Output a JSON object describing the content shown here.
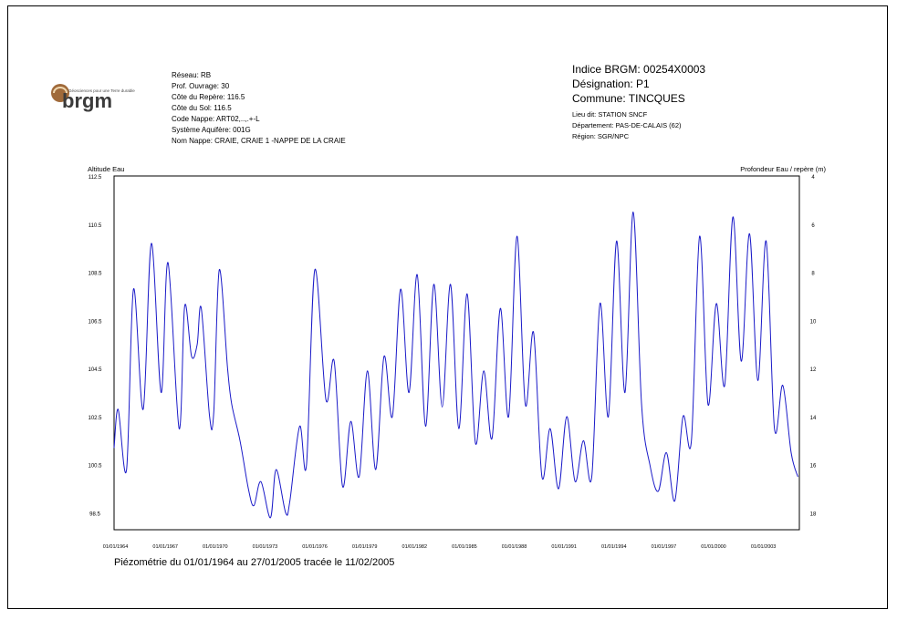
{
  "logo": {
    "wordmark": "brgm",
    "tagline": "Géosciences pour une Terre durable"
  },
  "station": {
    "reseau": "Réseau: RB",
    "prof_ouvrage": "Prof. Ouvrage: 30",
    "cote_repere": "Côte du Repère: 116.5",
    "cote_sol": "Côte du Sol: 116.5",
    "code_nappe": "Code Nappe: ART02,..,.+-L",
    "systeme_aquifere": "Système Aquifère: 001G",
    "nom_nappe": "Nom Nappe: CRAIE, CRAIE 1 -NAPPE DE LA CRAIE",
    "indice": "Indice BRGM: 00254X0003",
    "designation": "Désignation: P1",
    "commune": "Commune: TINCQUES",
    "lieu_dit": "Lieu dit: STATION SNCF",
    "departement": "Département: PAS-DE-CALAIS (62)",
    "region": "Région: SGR/NPC"
  },
  "caption": "Piézométrie du 01/01/1964 au 27/01/2005 tracée le 11/02/2005",
  "colors": {
    "series": "#1a1ac8",
    "axis": "#000000"
  },
  "chart_data": {
    "type": "line",
    "ylabel": "Altitude Eau",
    "y2label": "Profondeur Eau / repère (m)",
    "ylim": [
      97.8,
      112.5
    ],
    "y2lim": [
      4,
      18.7
    ],
    "yticks": [
      "112.5",
      "110.5",
      "108.5",
      "106.5",
      "104.5",
      "102.5",
      "100.5",
      "98.5"
    ],
    "y2ticks": [
      "4",
      "6",
      "8",
      "10",
      "12",
      "14",
      "16",
      "18"
    ],
    "xlim": [
      "1963-12-01",
      "2005-03-01"
    ],
    "xticks": [
      "01/01/1964",
      "01/01/1967",
      "01/01/1970",
      "01/01/1973",
      "01/01/1976",
      "01/01/1979",
      "01/01/1982",
      "01/01/1985",
      "01/01/1988",
      "01/01/1991",
      "01/01/1994",
      "01/01/1997",
      "01/01/2000",
      "01/01/2003"
    ],
    "grid": false,
    "series": [
      {
        "values": [
          [
            "1963-12-01",
            101.2
          ],
          [
            "1964-03-01",
            102.8
          ],
          [
            "1964-09-01",
            100.3
          ],
          [
            "1965-02-01",
            107.8
          ],
          [
            "1965-09-01",
            102.8
          ],
          [
            "1966-03-01",
            109.7
          ],
          [
            "1966-10-01",
            103.5
          ],
          [
            "1967-03-01",
            108.9
          ],
          [
            "1967-11-01",
            102.0
          ],
          [
            "1968-03-01",
            107.1
          ],
          [
            "1968-08-01",
            105.0
          ],
          [
            "1968-12-01",
            105.5
          ],
          [
            "1969-03-01",
            107.0
          ],
          [
            "1969-09-01",
            102.5
          ],
          [
            "1969-12-01",
            102.7
          ],
          [
            "1970-04-01",
            108.6
          ],
          [
            "1970-10-01",
            104.5
          ],
          [
            "1971-01-01",
            103.0
          ],
          [
            "1971-07-01",
            101.5
          ],
          [
            "1972-01-01",
            99.5
          ],
          [
            "1972-05-01",
            98.8
          ],
          [
            "1972-10-01",
            99.8
          ],
          [
            "1973-05-01",
            98.3
          ],
          [
            "1973-09-01",
            100.3
          ],
          [
            "1974-04-01",
            98.5
          ],
          [
            "1974-07-01",
            99.0
          ],
          [
            "1975-02-01",
            102.1
          ],
          [
            "1975-07-01",
            100.5
          ],
          [
            "1976-01-01",
            108.6
          ],
          [
            "1976-09-01",
            103.2
          ],
          [
            "1977-03-01",
            104.8
          ],
          [
            "1977-09-01",
            99.6
          ],
          [
            "1978-03-01",
            102.3
          ],
          [
            "1978-09-01",
            100.0
          ],
          [
            "1979-03-01",
            104.4
          ],
          [
            "1979-09-01",
            100.3
          ],
          [
            "1980-03-01",
            105.0
          ],
          [
            "1980-09-01",
            102.5
          ],
          [
            "1981-03-01",
            107.8
          ],
          [
            "1981-09-01",
            103.5
          ],
          [
            "1982-03-01",
            108.4
          ],
          [
            "1982-09-01",
            102.1
          ],
          [
            "1983-03-01",
            108.0
          ],
          [
            "1983-09-01",
            102.9
          ],
          [
            "1984-03-01",
            108.0
          ],
          [
            "1984-09-01",
            102.0
          ],
          [
            "1985-03-01",
            107.6
          ],
          [
            "1985-09-01",
            101.4
          ],
          [
            "1986-03-01",
            104.4
          ],
          [
            "1986-09-01",
            101.6
          ],
          [
            "1987-03-01",
            107.0
          ],
          [
            "1987-09-01",
            102.5
          ],
          [
            "1988-03-01",
            110.0
          ],
          [
            "1988-09-01",
            103.0
          ],
          [
            "1989-03-01",
            106.0
          ],
          [
            "1989-09-01",
            100.0
          ],
          [
            "1990-03-01",
            102.0
          ],
          [
            "1990-09-01",
            99.5
          ],
          [
            "1991-03-01",
            102.5
          ],
          [
            "1991-09-01",
            99.8
          ],
          [
            "1992-03-01",
            101.5
          ],
          [
            "1992-09-01",
            100.0
          ],
          [
            "1993-03-01",
            107.2
          ],
          [
            "1993-09-01",
            102.5
          ],
          [
            "1994-03-01",
            109.8
          ],
          [
            "1994-09-01",
            103.5
          ],
          [
            "1995-03-01",
            111.0
          ],
          [
            "1995-09-01",
            103.0
          ],
          [
            "1996-03-01",
            100.5
          ],
          [
            "1996-09-01",
            99.4
          ],
          [
            "1997-03-01",
            101.0
          ],
          [
            "1997-09-01",
            99.0
          ],
          [
            "1998-03-01",
            102.5
          ],
          [
            "1998-09-01",
            101.5
          ],
          [
            "1999-03-01",
            110.0
          ],
          [
            "1999-09-01",
            103.0
          ],
          [
            "2000-03-01",
            107.2
          ],
          [
            "2000-09-01",
            103.8
          ],
          [
            "2001-03-01",
            110.8
          ],
          [
            "2001-09-01",
            104.8
          ],
          [
            "2002-03-01",
            110.1
          ],
          [
            "2002-09-01",
            104.0
          ],
          [
            "2003-03-01",
            109.8
          ],
          [
            "2003-09-01",
            102.0
          ],
          [
            "2004-03-01",
            103.8
          ],
          [
            "2004-09-01",
            101.0
          ],
          [
            "2005-01-27",
            100.0
          ]
        ]
      }
    ]
  }
}
